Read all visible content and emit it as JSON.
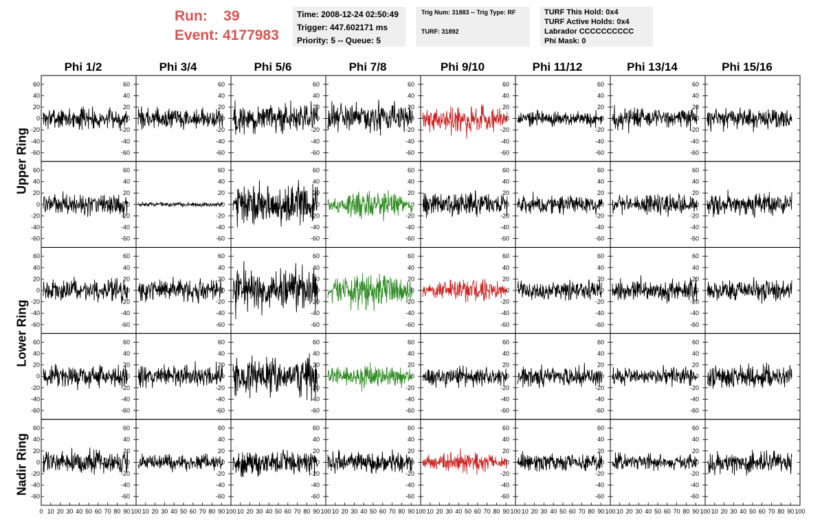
{
  "header": {
    "run_label": "Run:",
    "run_value": "39",
    "event_label": "Event:",
    "event_value": "4177983",
    "time": "Time: 2008-12-24 02:50:49",
    "trigger": "Trigger: 447.602171 ms",
    "priority": "Priority: 5 -- Queue: 5",
    "trig_num": "Trig Num: 31883 -- Trig Type: RF",
    "turf": "TURF: 31892",
    "turf_this_hold": "TURF This Hold: 0x4",
    "turf_active_holds": "TURF Active Holds: 0x4",
    "labrador": "Labrador CCCCCCCCCC",
    "phi_mask": "Phi Mask: 0"
  },
  "colors": {
    "header_red": "#d9534f",
    "trace_black": "#000000",
    "trace_red": "#cc2222",
    "trace_green": "#2e8b22"
  },
  "chart_data": {
    "type": "line",
    "columns": [
      "Phi 1/2",
      "Phi 3/4",
      "Phi 5/6",
      "Phi 7/8",
      "Phi 9/10",
      "Phi 11/12",
      "Phi 13/14",
      "Phi 15/16"
    ],
    "ring_labels": [
      "Upper Ring",
      "Lower Ring",
      "Nadir Ring"
    ],
    "rows": 5,
    "ylim": [
      -70,
      70
    ],
    "yticks": [
      -60,
      -40,
      -20,
      0,
      20,
      40,
      60
    ],
    "xlim": [
      0,
      100
    ],
    "xticks": [
      0,
      10,
      20,
      30,
      40,
      50,
      60,
      70,
      80,
      90,
      100
    ],
    "amplitudes": [
      [
        15,
        14,
        22,
        20,
        20,
        11,
        15,
        15
      ],
      [
        15,
        3,
        30,
        18,
        16,
        13,
        14,
        15
      ],
      [
        15,
        15,
        30,
        25,
        15,
        15,
        15,
        15
      ],
      [
        15,
        16,
        27,
        16,
        13,
        14,
        12,
        16
      ],
      [
        17,
        11,
        17,
        17,
        13,
        13,
        11,
        15
      ]
    ],
    "trace_colors": [
      [
        "black",
        "black",
        "black",
        "black",
        "red",
        "black",
        "black",
        "black"
      ],
      [
        "black",
        "black",
        "black",
        "green",
        "black",
        "black",
        "black",
        "black"
      ],
      [
        "black",
        "black",
        "black",
        "green",
        "red",
        "black",
        "black",
        "black"
      ],
      [
        "black",
        "black",
        "black",
        "green",
        "black",
        "black",
        "black",
        "black"
      ],
      [
        "black",
        "black",
        "black",
        "black",
        "red",
        "black",
        "black",
        "black"
      ]
    ]
  }
}
